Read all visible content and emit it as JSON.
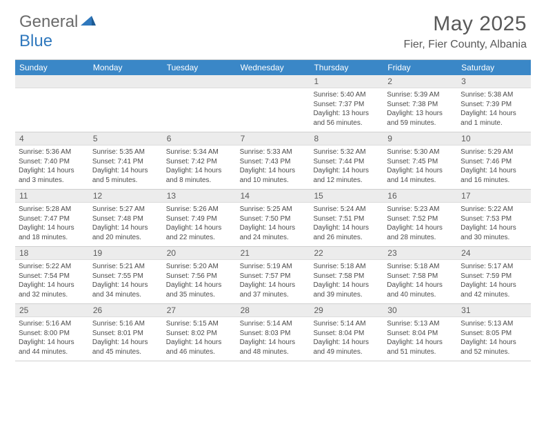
{
  "logo": {
    "part1": "General",
    "part2": "Blue"
  },
  "title": "May 2025",
  "location": "Fier, Fier County, Albania",
  "colors": {
    "headerBlue": "#3a87c7",
    "grayBand": "#ececec",
    "text": "#4a4a4a",
    "titleText": "#595959",
    "border": "#cfcfcf"
  },
  "daysOfWeek": [
    "Sunday",
    "Monday",
    "Tuesday",
    "Wednesday",
    "Thursday",
    "Friday",
    "Saturday"
  ],
  "weeks": [
    [
      {
        "num": "",
        "sunrise": "",
        "sunset": "",
        "daylight": ""
      },
      {
        "num": "",
        "sunrise": "",
        "sunset": "",
        "daylight": ""
      },
      {
        "num": "",
        "sunrise": "",
        "sunset": "",
        "daylight": ""
      },
      {
        "num": "",
        "sunrise": "",
        "sunset": "",
        "daylight": ""
      },
      {
        "num": "1",
        "sunrise": "Sunrise: 5:40 AM",
        "sunset": "Sunset: 7:37 PM",
        "daylight": "Daylight: 13 hours and 56 minutes."
      },
      {
        "num": "2",
        "sunrise": "Sunrise: 5:39 AM",
        "sunset": "Sunset: 7:38 PM",
        "daylight": "Daylight: 13 hours and 59 minutes."
      },
      {
        "num": "3",
        "sunrise": "Sunrise: 5:38 AM",
        "sunset": "Sunset: 7:39 PM",
        "daylight": "Daylight: 14 hours and 1 minute."
      }
    ],
    [
      {
        "num": "4",
        "sunrise": "Sunrise: 5:36 AM",
        "sunset": "Sunset: 7:40 PM",
        "daylight": "Daylight: 14 hours and 3 minutes."
      },
      {
        "num": "5",
        "sunrise": "Sunrise: 5:35 AM",
        "sunset": "Sunset: 7:41 PM",
        "daylight": "Daylight: 14 hours and 5 minutes."
      },
      {
        "num": "6",
        "sunrise": "Sunrise: 5:34 AM",
        "sunset": "Sunset: 7:42 PM",
        "daylight": "Daylight: 14 hours and 8 minutes."
      },
      {
        "num": "7",
        "sunrise": "Sunrise: 5:33 AM",
        "sunset": "Sunset: 7:43 PM",
        "daylight": "Daylight: 14 hours and 10 minutes."
      },
      {
        "num": "8",
        "sunrise": "Sunrise: 5:32 AM",
        "sunset": "Sunset: 7:44 PM",
        "daylight": "Daylight: 14 hours and 12 minutes."
      },
      {
        "num": "9",
        "sunrise": "Sunrise: 5:30 AM",
        "sunset": "Sunset: 7:45 PM",
        "daylight": "Daylight: 14 hours and 14 minutes."
      },
      {
        "num": "10",
        "sunrise": "Sunrise: 5:29 AM",
        "sunset": "Sunset: 7:46 PM",
        "daylight": "Daylight: 14 hours and 16 minutes."
      }
    ],
    [
      {
        "num": "11",
        "sunrise": "Sunrise: 5:28 AM",
        "sunset": "Sunset: 7:47 PM",
        "daylight": "Daylight: 14 hours and 18 minutes."
      },
      {
        "num": "12",
        "sunrise": "Sunrise: 5:27 AM",
        "sunset": "Sunset: 7:48 PM",
        "daylight": "Daylight: 14 hours and 20 minutes."
      },
      {
        "num": "13",
        "sunrise": "Sunrise: 5:26 AM",
        "sunset": "Sunset: 7:49 PM",
        "daylight": "Daylight: 14 hours and 22 minutes."
      },
      {
        "num": "14",
        "sunrise": "Sunrise: 5:25 AM",
        "sunset": "Sunset: 7:50 PM",
        "daylight": "Daylight: 14 hours and 24 minutes."
      },
      {
        "num": "15",
        "sunrise": "Sunrise: 5:24 AM",
        "sunset": "Sunset: 7:51 PM",
        "daylight": "Daylight: 14 hours and 26 minutes."
      },
      {
        "num": "16",
        "sunrise": "Sunrise: 5:23 AM",
        "sunset": "Sunset: 7:52 PM",
        "daylight": "Daylight: 14 hours and 28 minutes."
      },
      {
        "num": "17",
        "sunrise": "Sunrise: 5:22 AM",
        "sunset": "Sunset: 7:53 PM",
        "daylight": "Daylight: 14 hours and 30 minutes."
      }
    ],
    [
      {
        "num": "18",
        "sunrise": "Sunrise: 5:22 AM",
        "sunset": "Sunset: 7:54 PM",
        "daylight": "Daylight: 14 hours and 32 minutes."
      },
      {
        "num": "19",
        "sunrise": "Sunrise: 5:21 AM",
        "sunset": "Sunset: 7:55 PM",
        "daylight": "Daylight: 14 hours and 34 minutes."
      },
      {
        "num": "20",
        "sunrise": "Sunrise: 5:20 AM",
        "sunset": "Sunset: 7:56 PM",
        "daylight": "Daylight: 14 hours and 35 minutes."
      },
      {
        "num": "21",
        "sunrise": "Sunrise: 5:19 AM",
        "sunset": "Sunset: 7:57 PM",
        "daylight": "Daylight: 14 hours and 37 minutes."
      },
      {
        "num": "22",
        "sunrise": "Sunrise: 5:18 AM",
        "sunset": "Sunset: 7:58 PM",
        "daylight": "Daylight: 14 hours and 39 minutes."
      },
      {
        "num": "23",
        "sunrise": "Sunrise: 5:18 AM",
        "sunset": "Sunset: 7:58 PM",
        "daylight": "Daylight: 14 hours and 40 minutes."
      },
      {
        "num": "24",
        "sunrise": "Sunrise: 5:17 AM",
        "sunset": "Sunset: 7:59 PM",
        "daylight": "Daylight: 14 hours and 42 minutes."
      }
    ],
    [
      {
        "num": "25",
        "sunrise": "Sunrise: 5:16 AM",
        "sunset": "Sunset: 8:00 PM",
        "daylight": "Daylight: 14 hours and 44 minutes."
      },
      {
        "num": "26",
        "sunrise": "Sunrise: 5:16 AM",
        "sunset": "Sunset: 8:01 PM",
        "daylight": "Daylight: 14 hours and 45 minutes."
      },
      {
        "num": "27",
        "sunrise": "Sunrise: 5:15 AM",
        "sunset": "Sunset: 8:02 PM",
        "daylight": "Daylight: 14 hours and 46 minutes."
      },
      {
        "num": "28",
        "sunrise": "Sunrise: 5:14 AM",
        "sunset": "Sunset: 8:03 PM",
        "daylight": "Daylight: 14 hours and 48 minutes."
      },
      {
        "num": "29",
        "sunrise": "Sunrise: 5:14 AM",
        "sunset": "Sunset: 8:04 PM",
        "daylight": "Daylight: 14 hours and 49 minutes."
      },
      {
        "num": "30",
        "sunrise": "Sunrise: 5:13 AM",
        "sunset": "Sunset: 8:04 PM",
        "daylight": "Daylight: 14 hours and 51 minutes."
      },
      {
        "num": "31",
        "sunrise": "Sunrise: 5:13 AM",
        "sunset": "Sunset: 8:05 PM",
        "daylight": "Daylight: 14 hours and 52 minutes."
      }
    ]
  ]
}
